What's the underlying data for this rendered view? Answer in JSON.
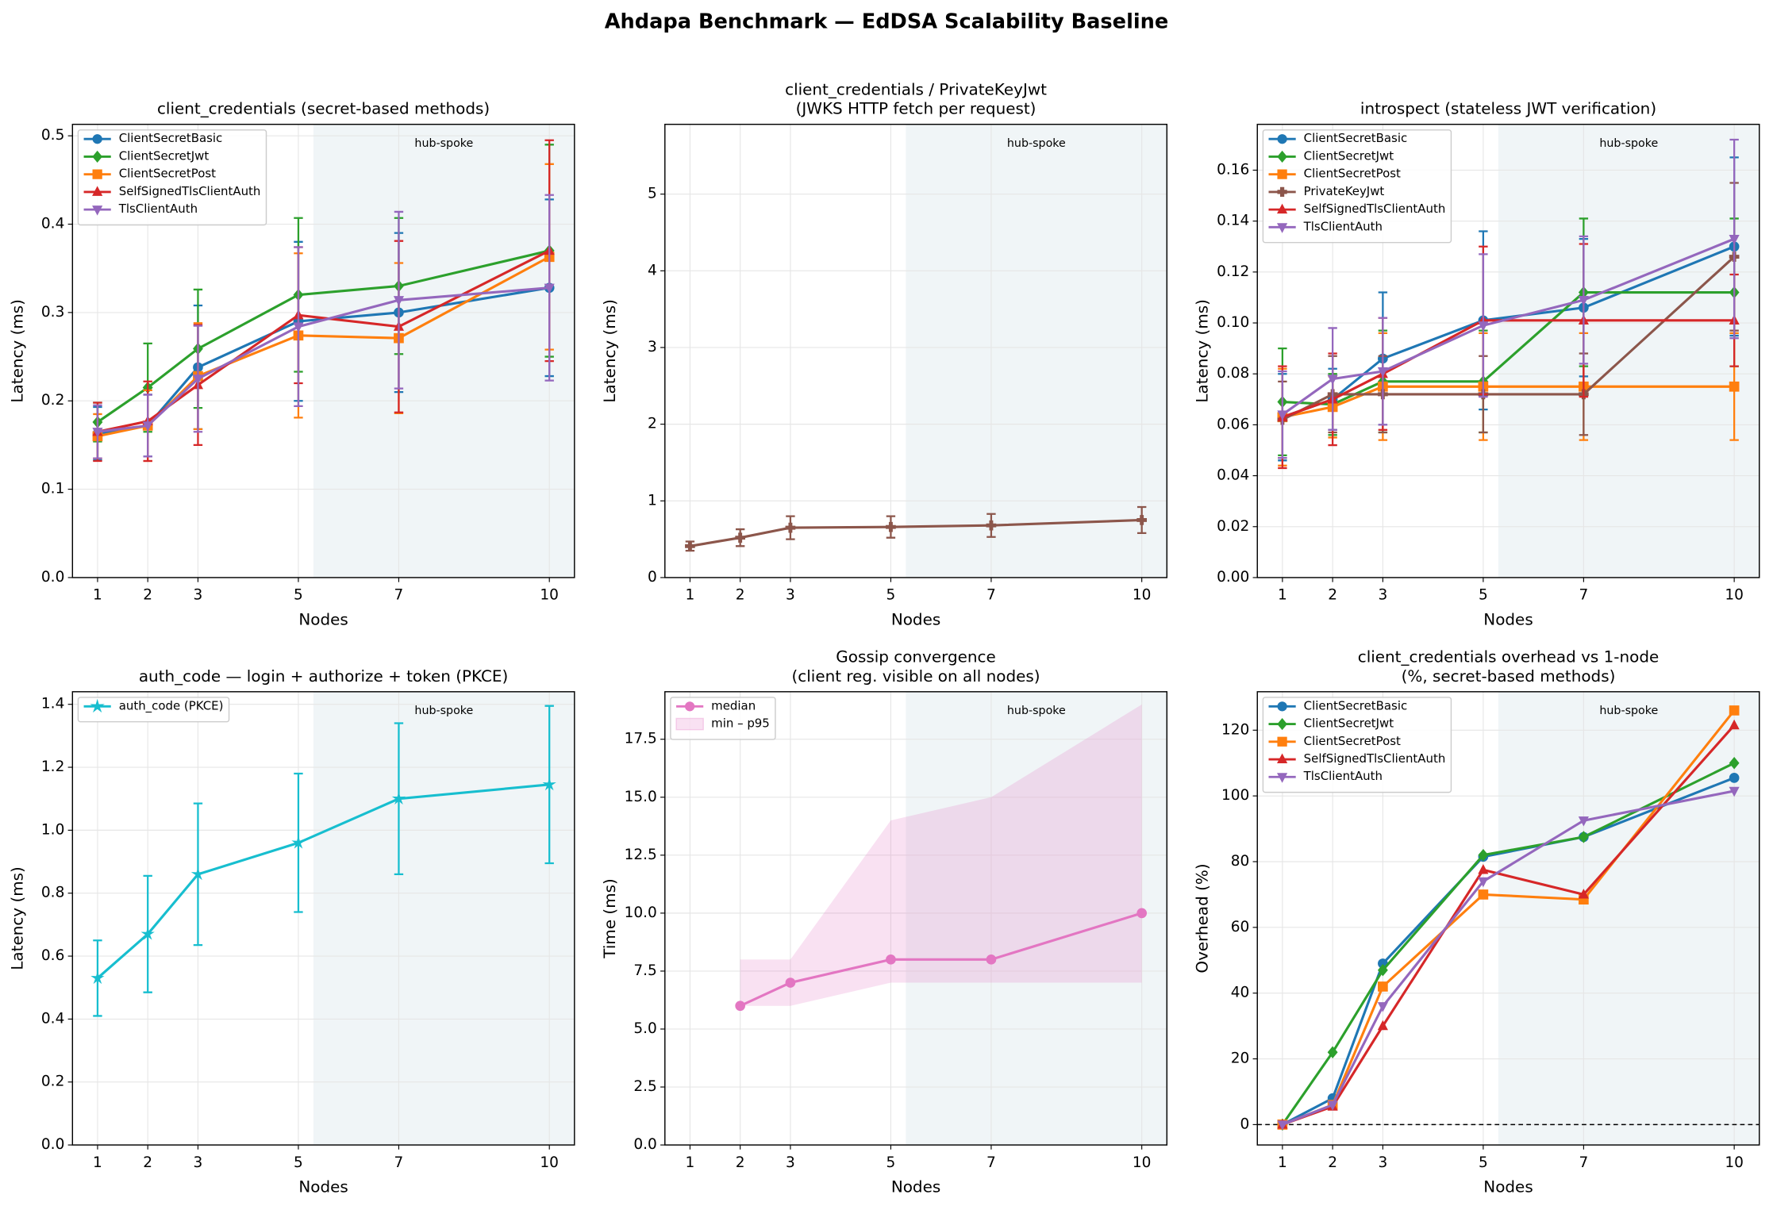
{
  "title": "Ahdapa Benchmark — EdDSA Scalability Baseline",
  "chart_data": [
    {
      "type": "line",
      "title": [
        "client_credentials (secret-based methods)"
      ],
      "x_label": "Nodes",
      "y_label": "Latency (ms)",
      "x": [
        1,
        2,
        3,
        5,
        7,
        10
      ],
      "xlim": [
        0.5,
        10.5
      ],
      "xticks": [
        1,
        2,
        3,
        5,
        7,
        10
      ],
      "ylim": [
        0,
        0.513
      ],
      "yticks": [
        {
          "value": 0,
          "label": "0.0"
        },
        0.1,
        0.2,
        0.3,
        0.4,
        0.5
      ],
      "grid": true,
      "legend": "upper left",
      "shaded_region": {
        "xlim": [
          5.3,
          10.5
        ],
        "label": "hub-spoke"
      },
      "series": [
        {
          "name": "ClientSecretBasic",
          "color": "#1f77b4",
          "marker": "circle",
          "values": [
            0.163,
            0.172,
            0.238,
            0.29,
            0.3,
            0.328
          ],
          "errors": [
            0.03,
            0.035,
            0.07,
            0.09,
            0.09,
            0.1
          ]
        },
        {
          "name": "ClientSecretJwt",
          "color": "#2ca02c",
          "marker": "diamond",
          "values": [
            0.176,
            0.215,
            0.259,
            0.32,
            0.33,
            0.37
          ],
          "errors": [
            0.022,
            0.05,
            0.067,
            0.087,
            0.077,
            0.12
          ]
        },
        {
          "name": "ClientSecretPost",
          "color": "#ff7f0e",
          "marker": "square",
          "values": [
            0.16,
            0.172,
            0.228,
            0.274,
            0.271,
            0.363
          ],
          "errors": [
            0.025,
            0.04,
            0.06,
            0.093,
            0.085,
            0.105
          ]
        },
        {
          "name": "SelfSignedTlsClientAuth",
          "color": "#d62728",
          "marker": "triangle-up",
          "values": [
            0.165,
            0.177,
            0.218,
            0.297,
            0.284,
            0.37
          ],
          "errors": [
            0.033,
            0.045,
            0.068,
            0.077,
            0.097,
            0.125
          ]
        },
        {
          "name": "TlsClientAuth",
          "color": "#9467bd",
          "marker": "triangle-down",
          "values": [
            0.165,
            0.172,
            0.225,
            0.284,
            0.314,
            0.328
          ],
          "errors": [
            0.03,
            0.035,
            0.06,
            0.09,
            0.1,
            0.105
          ]
        }
      ]
    },
    {
      "type": "line",
      "title": [
        "client_credentials / PrivateKeyJwt",
        "(JWKS HTTP fetch per request)"
      ],
      "x_label": "Nodes",
      "y_label": "Latency (ms)",
      "x": [
        1,
        2,
        3,
        5,
        7,
        10
      ],
      "xlim": [
        0.5,
        10.5
      ],
      "xticks": [
        1,
        2,
        3,
        5,
        7,
        10
      ],
      "ylim": [
        0,
        5.91
      ],
      "yticks": [
        0,
        1,
        2,
        3,
        4,
        5
      ],
      "grid": true,
      "shaded_region": {
        "xlim": [
          5.3,
          10.5
        ],
        "label": "hub-spoke"
      },
      "series": [
        {
          "name": "PrivateKeyJwt",
          "color": "#8c564b",
          "marker": "plus",
          "values": [
            0.41,
            0.52,
            0.65,
            0.66,
            0.68,
            0.75
          ],
          "errors": [
            0.06,
            0.11,
            0.15,
            0.14,
            0.15,
            0.17
          ]
        }
      ]
    },
    {
      "type": "line",
      "title": [
        "introspect (stateless JWT verification)"
      ],
      "x_label": "Nodes",
      "y_label": "Latency (ms)",
      "x": [
        1,
        2,
        3,
        5,
        7,
        10
      ],
      "xlim": [
        0.5,
        10.5
      ],
      "xticks": [
        1,
        2,
        3,
        5,
        7,
        10
      ],
      "ylim": [
        0,
        0.178
      ],
      "yticks": [
        {
          "value": 0,
          "label": "0.00"
        },
        0.02,
        0.04,
        0.06,
        {
          "value": 0.08,
          "label": "0.08"
        },
        {
          "value": 0.1,
          "label": "0.10"
        },
        0.12,
        0.14,
        0.16
      ],
      "grid": true,
      "legend": "upper left",
      "shaded_region": {
        "xlim": [
          5.3,
          10.5
        ],
        "label": "hub-spoke"
      },
      "series": [
        {
          "name": "ClientSecretBasic",
          "color": "#1f77b4",
          "marker": "circle",
          "values": [
            0.063,
            0.07,
            0.086,
            0.101,
            0.106,
            0.13
          ],
          "errors": [
            0.017,
            0.012,
            0.026,
            0.035,
            0.027,
            0.035
          ]
        },
        {
          "name": "ClientSecretJwt",
          "color": "#2ca02c",
          "marker": "diamond",
          "values": [
            0.069,
            0.068,
            0.077,
            0.077,
            0.112,
            0.112
          ],
          "errors": [
            0.021,
            0.012,
            0.02,
            0.02,
            0.029,
            0.029
          ]
        },
        {
          "name": "ClientSecretPost",
          "color": "#ff7f0e",
          "marker": "square",
          "values": [
            0.063,
            0.067,
            0.075,
            0.075,
            0.075,
            0.075
          ],
          "errors": [
            0.019,
            0.012,
            0.021,
            0.021,
            0.021,
            0.021
          ]
        },
        {
          "name": "PrivateKeyJwt",
          "color": "#8c564b",
          "marker": "plus",
          "values": [
            0.062,
            0.072,
            0.072,
            0.072,
            0.072,
            0.126
          ],
          "errors": [
            0.015,
            0.015,
            0.015,
            0.015,
            0.016,
            0.029
          ]
        },
        {
          "name": "SelfSignedTlsClientAuth",
          "color": "#d62728",
          "marker": "triangle-up",
          "values": [
            0.063,
            0.07,
            0.08,
            0.101,
            0.101,
            0.101
          ],
          "errors": [
            0.02,
            0.018,
            0.022,
            0.029,
            0.03,
            0.018
          ]
        },
        {
          "name": "TlsClientAuth",
          "color": "#9467bd",
          "marker": "triangle-down",
          "values": [
            0.064,
            0.078,
            0.081,
            0.099,
            0.109,
            0.133
          ],
          "errors": [
            0.017,
            0.02,
            0.021,
            0.028,
            0.025,
            0.039
          ]
        }
      ]
    },
    {
      "type": "line",
      "title": [
        "auth_code — login + authorize + token (PKCE)"
      ],
      "x_label": "Nodes",
      "y_label": "Latency (ms)",
      "x": [
        1,
        2,
        3,
        5,
        7,
        10
      ],
      "xlim": [
        0.5,
        10.5
      ],
      "xticks": [
        1,
        2,
        3,
        5,
        7,
        10
      ],
      "ylim": [
        0,
        1.44
      ],
      "yticks": [
        {
          "value": 0,
          "label": "0.0"
        },
        0.2,
        0.4,
        0.6,
        0.8,
        {
          "value": 1,
          "label": "1.0"
        },
        1.2,
        1.4
      ],
      "grid": true,
      "legend": "upper left",
      "shaded_region": {
        "xlim": [
          5.3,
          10.5
        ],
        "label": "hub-spoke"
      },
      "series": [
        {
          "name": "auth_code (PKCE)",
          "color": "#17becf",
          "marker": "star",
          "values": [
            0.53,
            0.67,
            0.86,
            0.96,
            1.1,
            1.145
          ],
          "errors": [
            0.12,
            0.185,
            0.225,
            0.22,
            0.24,
            0.25
          ]
        }
      ]
    },
    {
      "type": "line",
      "title": [
        "Gossip convergence",
        "(client reg. visible on all nodes)"
      ],
      "x_label": "Nodes",
      "y_label": "Time (ms)",
      "x": [
        2,
        3,
        5,
        7,
        10
      ],
      "xlim": [
        0.5,
        10.5
      ],
      "xticks": [
        1,
        2,
        3,
        5,
        7,
        10
      ],
      "ylim": [
        0,
        19.55
      ],
      "yticks": [
        {
          "value": 0,
          "label": "0.0"
        },
        2.5,
        {
          "value": 5,
          "label": "5.0"
        },
        7.5,
        {
          "value": 10,
          "label": "10.0"
        },
        12.5,
        {
          "value": 15,
          "label": "15.0"
        },
        17.5
      ],
      "grid": true,
      "legend": "upper left",
      "shaded_region": {
        "xlim": [
          5.3,
          10.5
        ],
        "label": "hub-spoke"
      },
      "series": [
        {
          "name": "median",
          "color": "#e377c2",
          "marker": "circle",
          "values": [
            6,
            7,
            8,
            8,
            10
          ]
        },
        {
          "name": "min – p95",
          "color": "#e377c2",
          "band": true,
          "low": [
            6,
            6,
            7,
            7,
            7
          ],
          "high": [
            8,
            8,
            14,
            15,
            19
          ]
        }
      ]
    },
    {
      "type": "line",
      "title": [
        "client_credentials overhead vs 1-node",
        "(%, secret-based methods)"
      ],
      "x_label": "Nodes",
      "y_label": "Overhead (%)",
      "x": [
        1,
        2,
        3,
        5,
        7,
        10
      ],
      "xlim": [
        0.5,
        10.5
      ],
      "xticks": [
        1,
        2,
        3,
        5,
        7,
        10
      ],
      "ylim": [
        -6.2,
        131.7
      ],
      "yticks": [
        0,
        20,
        40,
        60,
        80,
        100,
        120
      ],
      "grid": true,
      "legend": "upper left",
      "hline": 0,
      "shaded_region": {
        "xlim": [
          5.3,
          10.5
        ],
        "label": "hub-spoke"
      },
      "series": [
        {
          "name": "ClientSecretBasic",
          "color": "#1f77b4",
          "marker": "circle",
          "values": [
            0,
            8,
            49,
            81.5,
            87.5,
            105.5
          ]
        },
        {
          "name": "ClientSecretJwt",
          "color": "#2ca02c",
          "marker": "diamond",
          "values": [
            0,
            22,
            47,
            82,
            87.5,
            110
          ]
        },
        {
          "name": "ClientSecretPost",
          "color": "#ff7f0e",
          "marker": "square",
          "values": [
            0,
            6,
            42,
            70,
            68.5,
            126
          ]
        },
        {
          "name": "SelfSignedTlsClientAuth",
          "color": "#d62728",
          "marker": "triangle-up",
          "values": [
            0,
            5.5,
            30,
            77.5,
            70,
            121.5
          ]
        },
        {
          "name": "TlsClientAuth",
          "color": "#9467bd",
          "marker": "triangle-down",
          "values": [
            0,
            6,
            36,
            74,
            92.5,
            101.5
          ]
        }
      ]
    }
  ]
}
